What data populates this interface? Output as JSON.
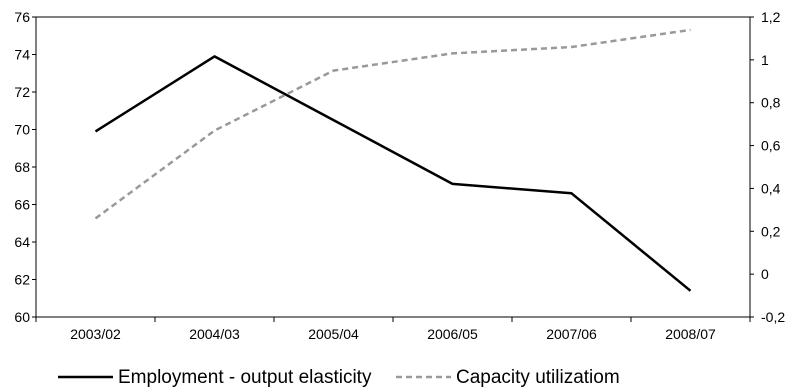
{
  "chart_data": {
    "type": "line",
    "title": "",
    "xlabel": "",
    "ylabel": "",
    "categories": [
      "2003/02",
      "2004/03",
      "2005/04",
      "2006/05",
      "2007/06",
      "2008/07"
    ],
    "ylim_left": [
      60,
      76
    ],
    "yticks_left": [
      "60",
      "62",
      "64",
      "66",
      "68",
      "70",
      "72",
      "74",
      "76"
    ],
    "ylim_right": [
      -0.2,
      1.2
    ],
    "yticks_right": [
      "-0,2",
      "0",
      "0,2",
      "0,4",
      "0,6",
      "0,8",
      "1",
      "1,2"
    ],
    "grid": false,
    "legend_position": "bottom",
    "series": [
      {
        "name": "Employment - output elasticity",
        "axis": "left",
        "style": "solid",
        "color": "#000000",
        "values": [
          69.9,
          73.9,
          70.5,
          67.1,
          66.6,
          61.4
        ]
      },
      {
        "name": "Capacity utilizatiom",
        "axis": "right",
        "style": "dashed",
        "color": "#999999",
        "values": [
          0.26,
          0.67,
          0.95,
          1.03,
          1.06,
          1.14
        ]
      }
    ]
  }
}
